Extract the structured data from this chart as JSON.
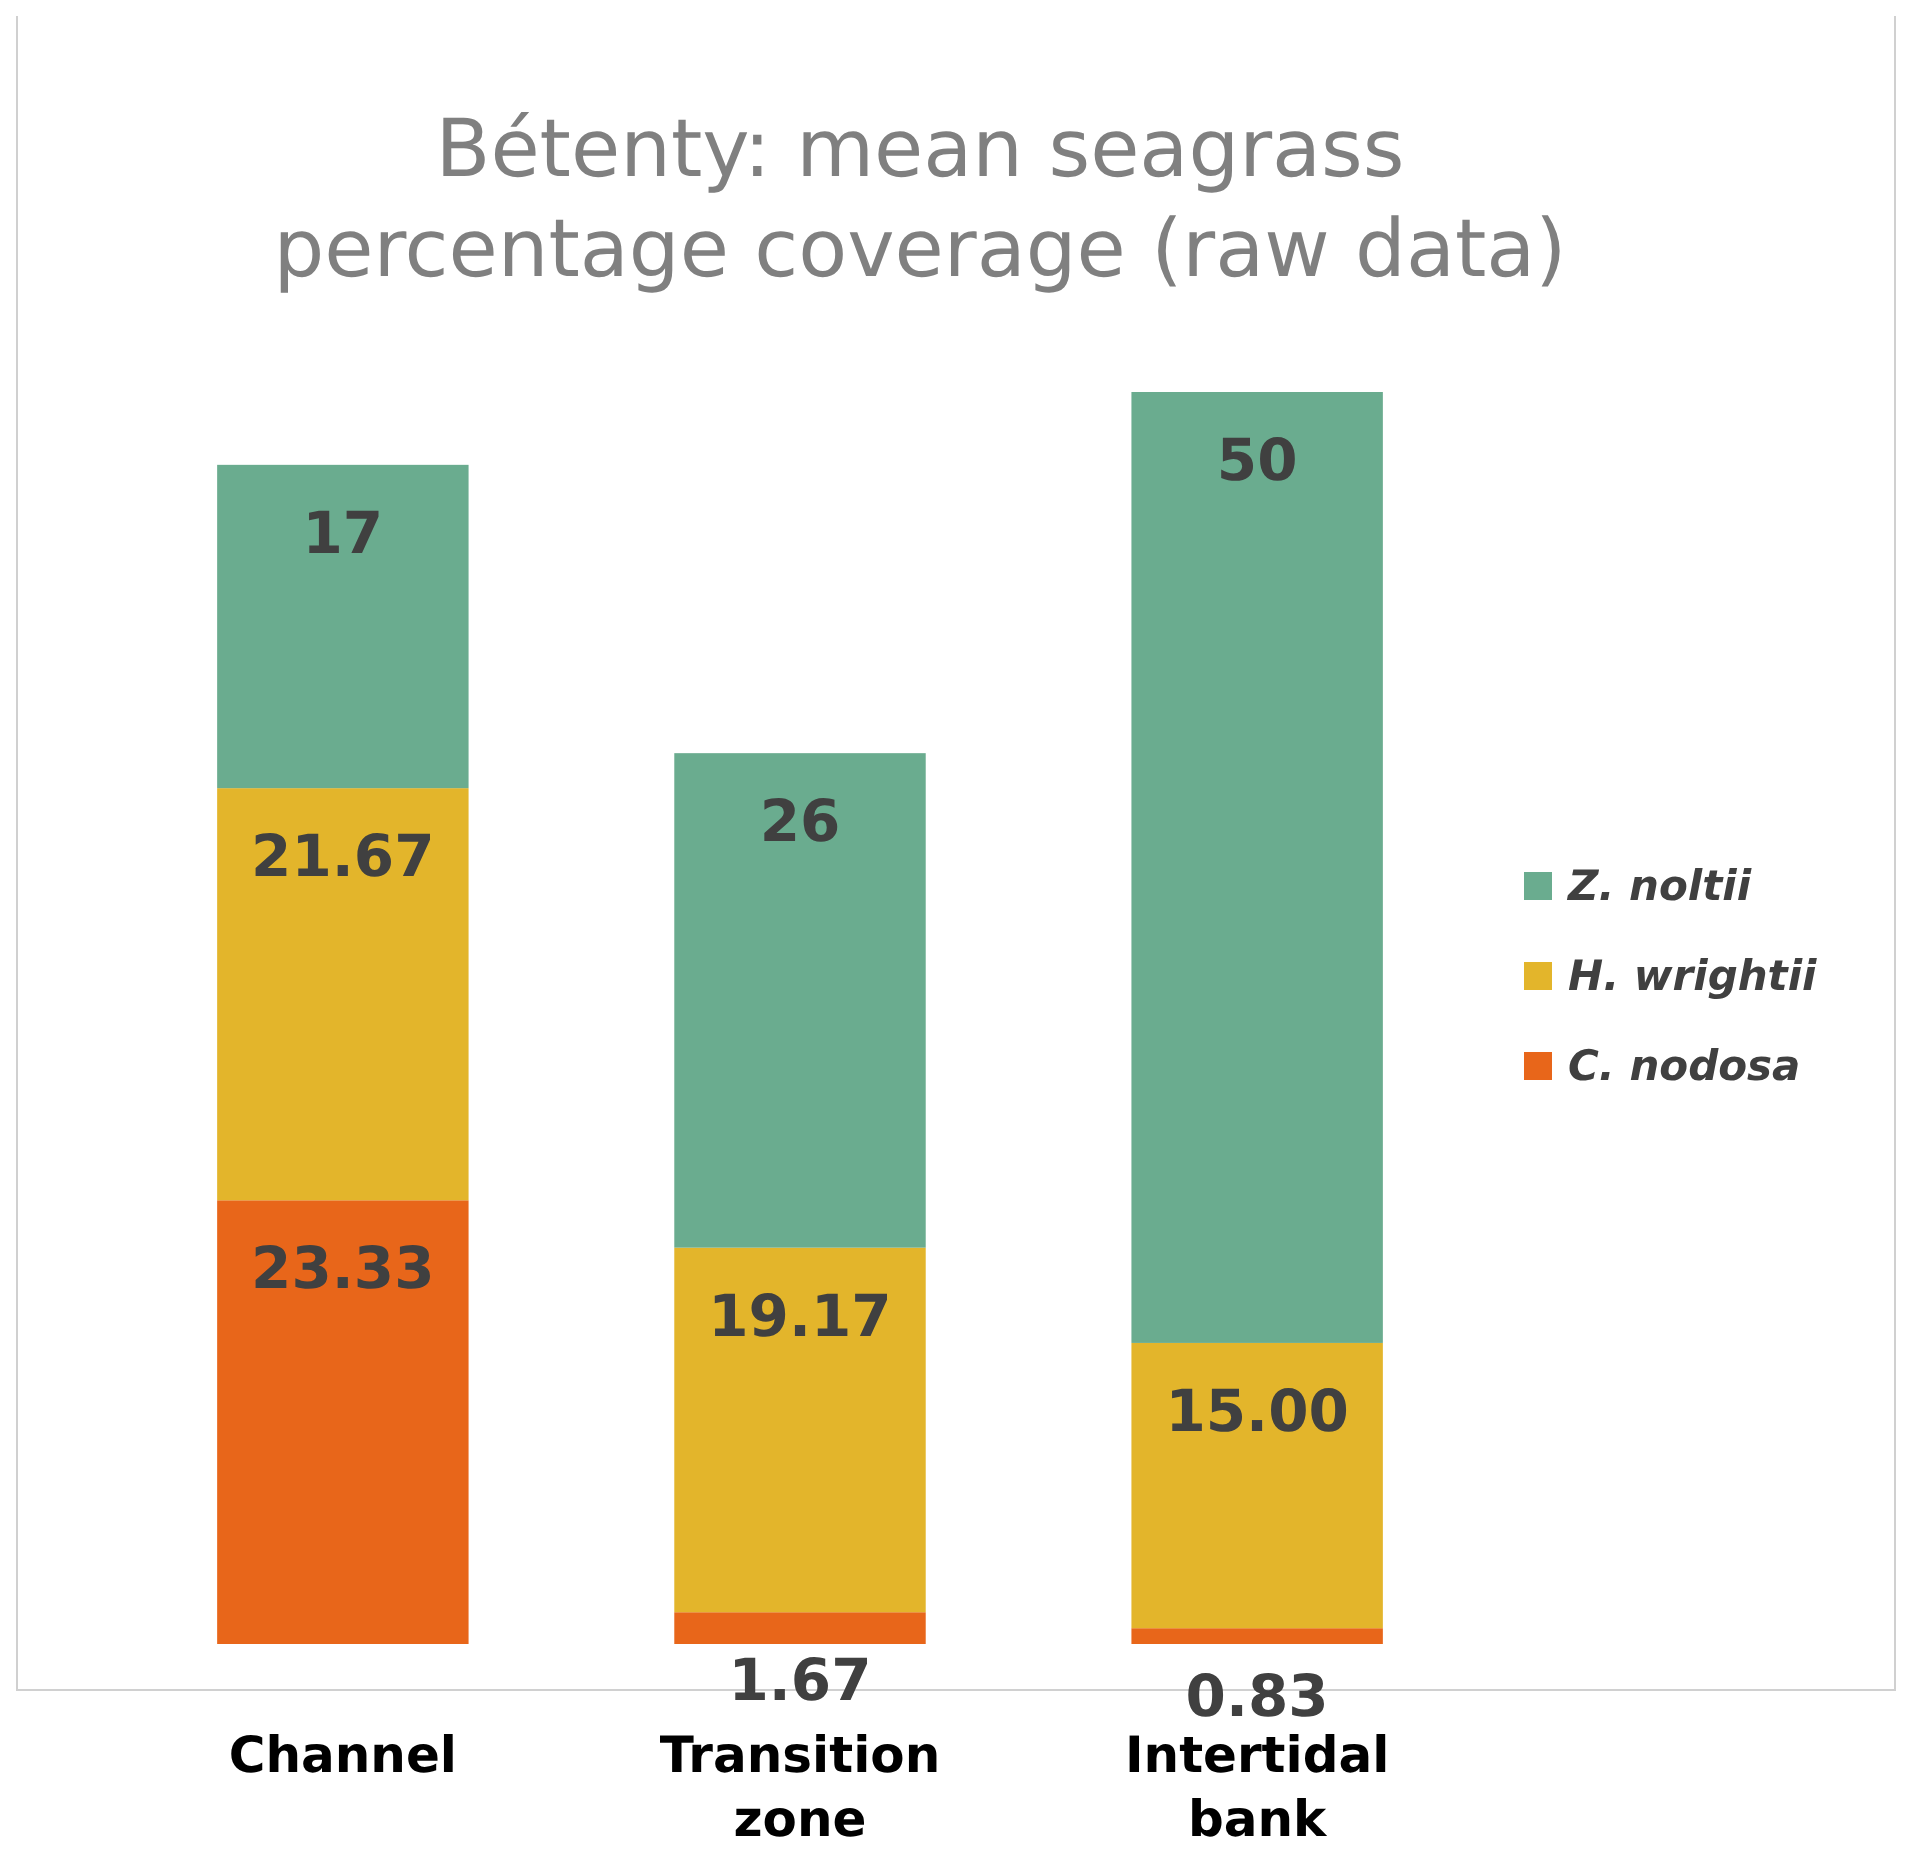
{
  "chart_data": {
    "type": "bar",
    "title": "Bétenty: mean seagrass percentage coverage (raw data)",
    "categories": [
      "Channel",
      "Transition zone",
      "Intertidal bank"
    ],
    "stacked": true,
    "legend": "right",
    "series": [
      {
        "name": "C. nodosa",
        "color": "#e8661a",
        "values": [
          23.33,
          1.67,
          0.83
        ],
        "value_labels": [
          "23.33",
          "1.67",
          "0.83"
        ]
      },
      {
        "name": "H. wrightii",
        "color": "#e3b52b",
        "values": [
          21.67,
          19.17,
          15
        ],
        "value_labels": [
          "21.67",
          "19.17",
          "15.00"
        ]
      },
      {
        "name": "Z. noltii",
        "color": "#6aac8f",
        "values": [
          17,
          26,
          50
        ],
        "value_labels": [
          "17",
          "26",
          "50"
        ]
      }
    ]
  }
}
